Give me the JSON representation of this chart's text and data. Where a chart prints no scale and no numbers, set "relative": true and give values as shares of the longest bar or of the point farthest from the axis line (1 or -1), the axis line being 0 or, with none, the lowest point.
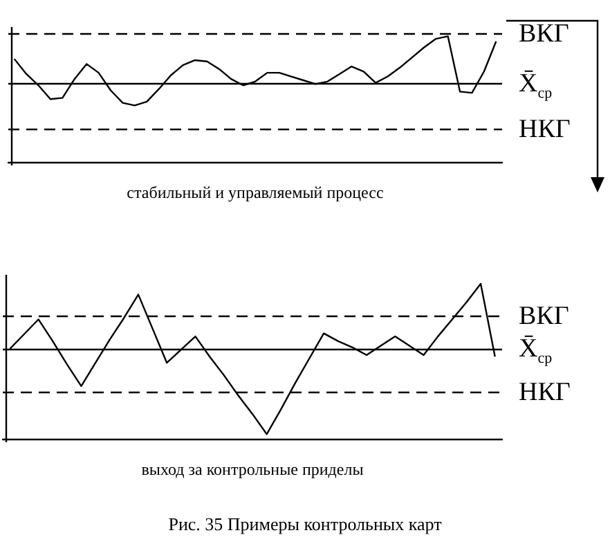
{
  "chart_data": [
    {
      "type": "line",
      "xlabel": "стабильный и управляемый процесс",
      "categories": [
        null,
        null,
        null,
        null,
        null,
        null,
        null,
        null,
        null,
        null,
        null,
        null,
        null,
        null,
        null,
        null,
        null,
        null,
        null,
        null,
        null,
        null,
        null,
        null,
        null,
        null,
        null,
        null,
        null,
        null,
        null,
        null,
        null,
        null,
        null,
        null,
        null,
        null,
        null,
        null,
        null
      ],
      "series": [
        {
          "color": "#000000",
          "values": [
            0.82,
            0.7,
            0.61,
            0.5,
            0.51,
            0.66,
            0.78,
            0.71,
            0.57,
            0.47,
            0.45,
            0.48,
            0.58,
            0.69,
            0.77,
            0.81,
            0.8,
            0.74,
            0.66,
            0.61,
            0.64,
            0.71,
            0.71,
            0.68,
            0.65,
            0.62,
            0.64,
            0.7,
            0.76,
            0.72,
            0.63,
            0.68,
            0.75,
            0.83,
            0.91,
            0.98,
            1.0,
            0.56,
            0.55,
            0.72,
            0.96
          ]
        }
      ],
      "relative": true,
      "marker": "none",
      "line_style": "solid",
      "ref_lines": [
        {
          "axis": "y",
          "value": 1.02,
          "label": "ВКГ",
          "line_style": "dashed",
          "color": "#000000"
        },
        {
          "axis": "y",
          "value": 0.62,
          "label": "X̄$_{ср}$",
          "line_style": "solid",
          "color": "#000000"
        },
        {
          "axis": "y",
          "value": 0.26,
          "label": "НКГ",
          "line_style": "dashed",
          "color": "#000000"
        }
      ]
    },
    {
      "type": "line",
      "xlabel": "выход за контрольные приделы",
      "categories": [
        null,
        null,
        null,
        null,
        null,
        null,
        null,
        null,
        null,
        null,
        null,
        null,
        null,
        null,
        null,
        null,
        null,
        null,
        null,
        null,
        null,
        null,
        null,
        null,
        null,
        null,
        null,
        null,
        null,
        null,
        null,
        null,
        null,
        null,
        null
      ],
      "series": [
        {
          "color": "#000000",
          "values": [
            0.58,
            0.675,
            0.77,
            0.63,
            0.48,
            0.34,
            0.49,
            0.64,
            0.78,
            0.93,
            0.71,
            0.49,
            0.575,
            0.66,
            0.53,
            0.41,
            0.28,
            0.16,
            0.03,
            0.19,
            0.36,
            0.52,
            0.68,
            0.63,
            0.59,
            0.54,
            0.6,
            0.66,
            0.6,
            0.54,
            0.66,
            0.77,
            0.88,
            1.0,
            0.53
          ]
        }
      ],
      "relative": true,
      "marker": "none",
      "line_style": "solid",
      "ref_lines": [
        {
          "axis": "y",
          "value": 0.79,
          "label": "ВКГ",
          "line_style": "dashed",
          "color": "#000000"
        },
        {
          "axis": "y",
          "value": 0.58,
          "label": "X̄$_{ср}$",
          "line_style": "solid",
          "color": "#000000"
        },
        {
          "axis": "y",
          "value": 0.3,
          "label": "НКГ",
          "line_style": "dashed",
          "color": "#000000"
        }
      ],
      "annotations": [
        "Рис. 35 Примеры контрольных карт"
      ]
    }
  ]
}
